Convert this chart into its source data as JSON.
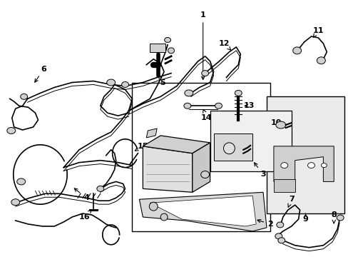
{
  "bg": "#ffffff",
  "lc": "#000000",
  "fig_w": 4.89,
  "fig_h": 3.6,
  "dpi": 100
}
